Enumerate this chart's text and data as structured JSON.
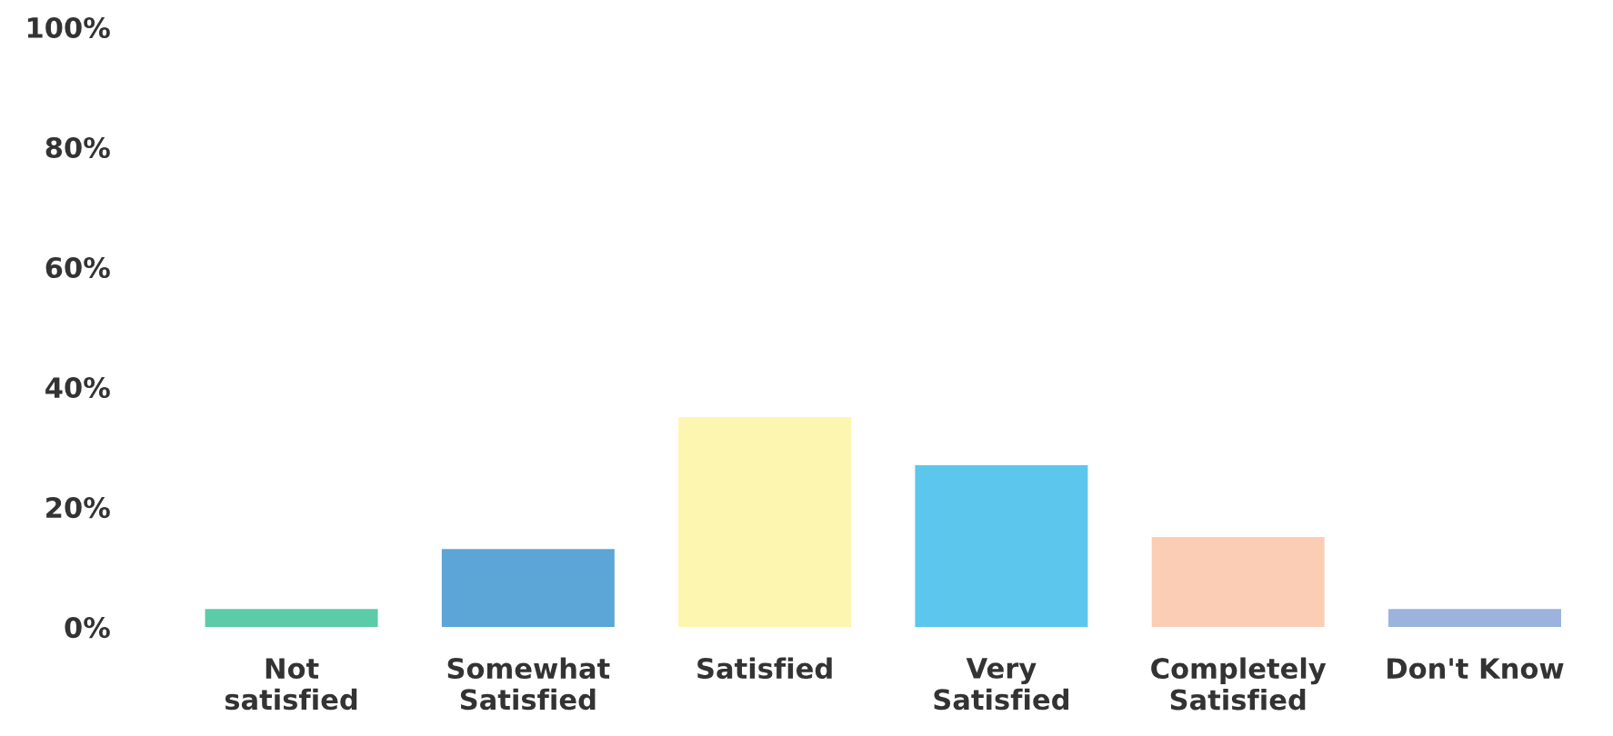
{
  "chart_data": {
    "type": "bar",
    "categories": [
      "Not\nsatisfied",
      "Somewhat\nSatisfied",
      "Satisfied",
      "Very\nSatisfied",
      "Completely\nSatisfied",
      "Don't Know"
    ],
    "values": [
      3,
      13,
      35,
      27,
      15,
      3
    ],
    "colors": [
      "#5ccba8",
      "#5ba6d6",
      "#fdf6b0",
      "#5cc6ec",
      "#fbcdb5",
      "#9bb3dd"
    ],
    "ylim": [
      0,
      100
    ],
    "yticks": [
      {
        "value": 0,
        "label": "0%"
      },
      {
        "value": 20,
        "label": "20%"
      },
      {
        "value": 40,
        "label": "40%"
      },
      {
        "value": 60,
        "label": "60%"
      },
      {
        "value": 80,
        "label": "80%"
      },
      {
        "value": 100,
        "label": "100%"
      }
    ],
    "grid": false
  }
}
